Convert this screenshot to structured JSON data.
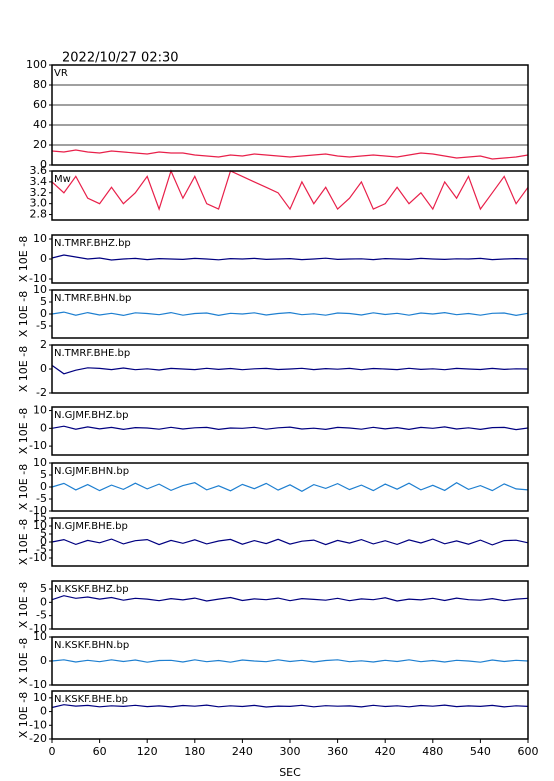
{
  "title": "2022/10/27 02:30",
  "time_axis": {
    "xlabel": "SEC",
    "xlim": [
      0,
      600
    ],
    "xticks": [
      0,
      60,
      120,
      180,
      240,
      300,
      360,
      420,
      480,
      540,
      600
    ],
    "x": [
      0,
      15,
      30,
      45,
      60,
      75,
      90,
      105,
      120,
      135,
      150,
      165,
      180,
      195,
      210,
      225,
      240,
      255,
      270,
      285,
      300,
      315,
      330,
      345,
      360,
      375,
      390,
      405,
      420,
      435,
      450,
      465,
      480,
      495,
      510,
      525,
      540,
      555,
      570,
      585,
      600
    ]
  },
  "chart_data": [
    {
      "type": "line",
      "title": "VR",
      "color": "#e8204a",
      "ylim": [
        0,
        100
      ],
      "yticks": [
        0,
        20,
        40,
        60,
        80,
        100
      ],
      "grid": true,
      "values": [
        14,
        13,
        15,
        13,
        12,
        14,
        13,
        12,
        11,
        13,
        12,
        12,
        10,
        9,
        8,
        10,
        9,
        11,
        10,
        9,
        8,
        9,
        10,
        11,
        9,
        8,
        9,
        10,
        9,
        8,
        10,
        12,
        11,
        9,
        7,
        8,
        9,
        6,
        7,
        8,
        10
      ]
    },
    {
      "type": "line",
      "title": "Mw",
      "color": "#e8204a",
      "ylim": [
        2.7,
        3.6
      ],
      "grid": false,
      "yticks": [
        2.8,
        {
          "value": 3.0,
          "label": "3.0"
        },
        3.2,
        3.4,
        3.6
      ],
      "values": [
        3.4,
        3.2,
        3.5,
        3.1,
        3.0,
        3.3,
        3.0,
        3.2,
        3.5,
        2.9,
        3.6,
        3.1,
        3.5,
        3.0,
        2.9,
        3.6,
        3.5,
        3.4,
        3.3,
        3.2,
        2.9,
        3.4,
        3.0,
        3.3,
        2.9,
        3.1,
        3.4,
        2.9,
        3.0,
        3.3,
        3.0,
        3.2,
        2.9,
        3.4,
        3.1,
        3.5,
        2.9,
        3.2,
        3.5,
        3.0,
        3.3
      ]
    },
    {
      "type": "line",
      "title": "N.TMRF.BHZ.bp",
      "ylabel": "X 10E -8",
      "color": "#000080",
      "ylim": [
        -12,
        12
      ],
      "yticks": [
        -10,
        0,
        10
      ],
      "grid": false,
      "values": [
        0.5,
        2,
        1,
        0,
        0.5,
        -0.5,
        0,
        0.3,
        -0.3,
        0.2,
        0,
        -0.2,
        0.3,
        0,
        -0.4,
        0.2,
        0,
        0.3,
        -0.2,
        0,
        0.2,
        -0.3,
        0,
        0.4,
        -0.2,
        0,
        0.1,
        -0.3,
        0.2,
        0,
        -0.2,
        0.3,
        0,
        -0.2,
        0.1,
        0,
        0.3,
        -0.3,
        0,
        0.2,
        0
      ]
    },
    {
      "type": "line",
      "title": "N.TMRF.BHN.bp",
      "ylabel": "X 10E -8",
      "color": "#1e7fd0",
      "ylim": [
        -10,
        10
      ],
      "yticks": [
        -5,
        0,
        5,
        10
      ],
      "grid": false,
      "values": [
        0,
        0.8,
        -0.5,
        0.6,
        -0.4,
        0.3,
        -0.6,
        0.5,
        0.2,
        -0.3,
        0.6,
        -0.5,
        0.2,
        0.4,
        -0.6,
        0.3,
        0,
        0.5,
        -0.4,
        0.2,
        0.6,
        -0.3,
        0.1,
        -0.5,
        0.4,
        0.2,
        -0.4,
        0.5,
        -0.2,
        0.3,
        -0.5,
        0.4,
        0,
        0.6,
        -0.3,
        0.2,
        -0.5,
        0.3,
        0.4,
        -0.6,
        0.3
      ]
    },
    {
      "type": "line",
      "title": "N.TMRF.BHE.bp",
      "ylabel": "X 10E -8",
      "color": "#000080",
      "ylim": [
        -2,
        2
      ],
      "yticks": [
        -2,
        0,
        2
      ],
      "grid": false,
      "values": [
        0.3,
        -0.4,
        -0.1,
        0.1,
        0.05,
        -0.05,
        0.08,
        -0.06,
        0.02,
        -0.08,
        0.05,
        0,
        -0.05,
        0.06,
        -0.03,
        0.04,
        -0.06,
        0.02,
        0.05,
        -0.04,
        0,
        0.06,
        -0.05,
        0.03,
        -0.02,
        0.05,
        -0.06,
        0.04,
        0,
        -0.05,
        0.06,
        -0.03,
        0.02,
        -0.06,
        0.05,
        0,
        -0.04,
        0.05,
        -0.03,
        0.02,
        0
      ]
    },
    {
      "type": "line",
      "title": "N.GJMF.BHZ.bp",
      "ylabel": "X 10E -8",
      "color": "#000080",
      "ylim": [
        -15,
        12
      ],
      "yticks": [
        -10,
        0,
        10
      ],
      "grid": false,
      "values": [
        0,
        1.2,
        -0.5,
        0.8,
        -0.3,
        0.5,
        -0.6,
        0.4,
        0.2,
        -0.5,
        0.6,
        -0.4,
        0.3,
        0.5,
        -0.6,
        0.2,
        0,
        0.6,
        -0.5,
        0.3,
        0.7,
        -0.4,
        0.1,
        -0.6,
        0.5,
        0.2,
        -0.5,
        0.6,
        -0.3,
        0.4,
        -0.6,
        0.5,
        0,
        0.8,
        -0.4,
        0.3,
        -0.6,
        0.4,
        0.5,
        -0.7,
        0.2
      ]
    },
    {
      "type": "line",
      "title": "N.GJMF.BHN.bp",
      "ylabel": "X 10E -8",
      "color": "#1e7fd0",
      "ylim": [
        -10,
        10
      ],
      "yticks": [
        -10,
        -5,
        0,
        5,
        10
      ],
      "grid": false,
      "values": [
        0,
        1.5,
        -1.2,
        1,
        -1.5,
        0.8,
        -1,
        1.6,
        -0.8,
        1.2,
        -1.4,
        0.6,
        1.8,
        -1.2,
        0.5,
        -1.6,
        1.1,
        -0.7,
        1.5,
        -1.3,
        0.9,
        -1.8,
        1,
        -0.6,
        1.4,
        -1.1,
        0.8,
        -1.5,
        1.2,
        -0.9,
        1.6,
        -1.2,
        0.7,
        -1.4,
        1.8,
        -1,
        0.6,
        -1.5,
        1.3,
        -0.8,
        -1.2
      ]
    },
    {
      "type": "line",
      "title": "N.GJMF.BHE.bp",
      "ylabel": "X 10E -8",
      "color": "#000080",
      "ylim": [
        -15,
        15
      ],
      "yticks": [
        -10,
        -5,
        0,
        5,
        10,
        15
      ],
      "grid": false,
      "values": [
        0,
        1.5,
        -1.5,
        1,
        -0.5,
        1.8,
        -1.2,
        0.8,
        1.5,
        -1.6,
        1,
        -0.8,
        1.4,
        -1.2,
        0.6,
        1.6,
        -1.4,
        0.9,
        -1,
        1.7,
        -1.3,
        0.5,
        1.2,
        -1.6,
        1,
        -0.7,
        1.5,
        -1.2,
        0.8,
        -1.5,
        1.3,
        -0.6,
        1.8,
        -1.1,
        0.7,
        -1.4,
        1.2,
        -1.8,
        0.9,
        1.1,
        -0.5
      ]
    },
    {
      "type": "line",
      "title": "N.KSKF.BHZ.bp",
      "ylabel": "X 10E -8",
      "color": "#000080",
      "ylim": [
        -10,
        8
      ],
      "yticks": [
        -10,
        -5,
        0,
        5
      ],
      "grid": false,
      "values": [
        1,
        2.5,
        1.5,
        2,
        1.2,
        1.8,
        0.8,
        1.5,
        1.2,
        0.6,
        1.4,
        0.9,
        1.6,
        0.5,
        1.2,
        1.8,
        0.7,
        1.3,
        1,
        1.6,
        0.6,
        1.4,
        1.1,
        0.8,
        1.5,
        0.6,
        1.3,
        1,
        1.7,
        0.5,
        1.2,
        0.9,
        1.5,
        0.7,
        1.6,
        1,
        0.8,
        1.4,
        0.6,
        1.2,
        1.5
      ]
    },
    {
      "type": "line",
      "title": "N.KSKF.BHN.bp",
      "ylabel": "X 10E -8",
      "color": "#1e7fd0",
      "ylim": [
        -10,
        10
      ],
      "yticks": [
        -10,
        0,
        10
      ],
      "grid": false,
      "values": [
        0,
        0.5,
        -0.4,
        0.3,
        -0.3,
        0.5,
        -0.2,
        0.4,
        -0.5,
        0.2,
        0.3,
        -0.4,
        0.5,
        -0.3,
        0.2,
        -0.5,
        0.4,
        0,
        -0.3,
        0.5,
        -0.2,
        0.3,
        -0.4,
        0.2,
        0.5,
        -0.3,
        0.1,
        -0.4,
        0.3,
        -0.2,
        0.5,
        -0.3,
        0.2,
        -0.4,
        0.3,
        0,
        -0.5,
        0.4,
        -0.2,
        0.3,
        0
      ]
    },
    {
      "type": "line",
      "title": "N.KSKF.BHE.bp",
      "ylabel": "X 10E -8",
      "color": "#000080",
      "ylim": [
        -20,
        15
      ],
      "yticks": [
        -20,
        -10,
        0,
        10
      ],
      "grid": false,
      "values": [
        3,
        5,
        4,
        4.5,
        3.5,
        4.2,
        3.8,
        4.6,
        3.6,
        4.1,
        3.4,
        4.4,
        3.9,
        4.7,
        3.5,
        4.2,
        3.7,
        4.5,
        3.3,
        4,
        3.8,
        4.6,
        3.5,
        4.3,
        3.9,
        4.1,
        3.4,
        4.6,
        3.7,
        4.2,
        3.5,
        4.4,
        3.9,
        4.7,
        3.6,
        4.1,
        3.8,
        4.5,
        3.4,
        4.2,
        3.8
      ]
    }
  ]
}
